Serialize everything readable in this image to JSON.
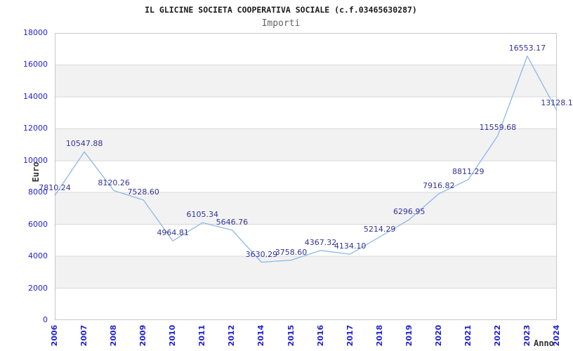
{
  "chart_data": {
    "type": "line",
    "title": "IL GLICINE SOCIETA COOPERATIVA SOCIALE (c.f.03465630287)",
    "subtitle": "Importi",
    "xlabel": "Anno",
    "ylabel": "Euro",
    "categories": [
      "2006",
      "2007",
      "2008",
      "2009",
      "2010",
      "2011",
      "2012",
      "2014",
      "2015",
      "2016",
      "2017",
      "2018",
      "2019",
      "2020",
      "2021",
      "2022",
      "2023",
      "2024"
    ],
    "values": [
      7810.24,
      10547.88,
      8120.26,
      7528.6,
      4964.81,
      6105.34,
      5646.76,
      3630.29,
      3758.6,
      4367.32,
      4134.1,
      5214.29,
      6296.95,
      7916.82,
      8811.29,
      11559.68,
      16553.17,
      13128.1
    ],
    "point_labels": [
      "7810.24",
      "10547.88",
      "8120.26",
      "7528.60",
      "4964.81",
      "6105.34",
      "5646.76",
      "3630.29",
      "3758.60",
      "4367.32",
      "4134.10",
      "5214.29",
      "6296.95",
      "7916.82",
      "8811.29",
      "11559.68",
      "16553.17",
      "13128.1"
    ],
    "yticks": [
      0,
      2000,
      4000,
      6000,
      8000,
      10000,
      12000,
      14000,
      16000,
      18000
    ],
    "ylim": [
      0,
      18000
    ],
    "grid": "horizontal-bands",
    "legend": "none",
    "colors": {
      "line": "#8cb8e8",
      "tick_label": "#2323cd",
      "point_label": "#333399",
      "band": "#f2f2f2",
      "gridline": "#d8d8d8",
      "plot_border": "#c9c9c9",
      "title": "#1a1a1a",
      "subtitle": "#666666",
      "axis_title": "#333333"
    }
  }
}
